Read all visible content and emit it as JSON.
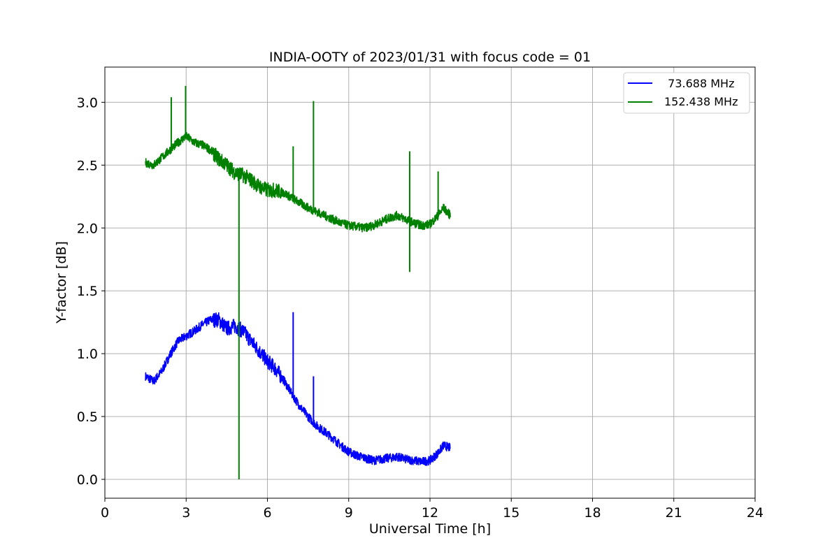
{
  "chart_data": {
    "type": "line",
    "title": "INDIA-OOTY of 2023/01/31 with focus code = 01",
    "xlabel": "Universal Time [h]",
    "ylabel": "Y-factor [dB]",
    "xlim": [
      0,
      24
    ],
    "ylim": [
      -0.15,
      3.28
    ],
    "xticks": [
      0,
      3,
      6,
      9,
      12,
      15,
      18,
      21,
      24
    ],
    "yticks": [
      0.0,
      0.5,
      1.0,
      1.5,
      2.0,
      2.5,
      3.0
    ],
    "xtick_labels": [
      "0",
      "3",
      "6",
      "9",
      "12",
      "15",
      "18",
      "21",
      "24"
    ],
    "ytick_labels": [
      "0.0",
      "0.5",
      "1.0",
      "1.5",
      "2.0",
      "2.5",
      "3.0"
    ],
    "grid": true,
    "legend_position": "top-right",
    "series": [
      {
        "name": "  73.688 MHz",
        "color": "#0000ff",
        "x": [
          1.5,
          1.8,
          2.1,
          2.4,
          2.7,
          3.0,
          3.3,
          3.6,
          3.9,
          4.2,
          4.5,
          4.8,
          5.1,
          5.4,
          5.7,
          6.0,
          6.3,
          6.6,
          6.9,
          7.2,
          7.5,
          7.8,
          8.1,
          8.4,
          8.7,
          9.0,
          9.3,
          9.6,
          9.9,
          10.2,
          10.5,
          10.8,
          11.1,
          11.4,
          11.7,
          12.0,
          12.3,
          12.5,
          12.75
        ],
        "y": [
          0.82,
          0.78,
          0.86,
          0.99,
          1.1,
          1.14,
          1.18,
          1.23,
          1.27,
          1.27,
          1.2,
          1.22,
          1.18,
          1.1,
          1.02,
          0.94,
          0.88,
          0.79,
          0.68,
          0.58,
          0.5,
          0.43,
          0.38,
          0.33,
          0.27,
          0.22,
          0.19,
          0.17,
          0.15,
          0.16,
          0.17,
          0.18,
          0.16,
          0.15,
          0.14,
          0.15,
          0.21,
          0.27,
          0.25
        ]
      },
      {
        "name": "152.438 MHz",
        "color": "#008000",
        "x": [
          1.5,
          1.8,
          2.1,
          2.4,
          2.7,
          3.0,
          3.3,
          3.6,
          3.9,
          4.2,
          4.5,
          4.8,
          4.95,
          5.1,
          5.4,
          5.7,
          6.0,
          6.3,
          6.6,
          6.9,
          7.2,
          7.5,
          7.8,
          8.1,
          8.4,
          8.7,
          9.0,
          9.3,
          9.6,
          9.9,
          10.2,
          10.5,
          10.8,
          11.1,
          11.4,
          11.7,
          12.0,
          12.3,
          12.5,
          12.75
        ],
        "y": [
          2.52,
          2.5,
          2.56,
          2.62,
          2.68,
          2.73,
          2.68,
          2.66,
          2.62,
          2.55,
          2.5,
          2.44,
          0.0,
          2.42,
          2.38,
          2.33,
          2.3,
          2.3,
          2.28,
          2.24,
          2.2,
          2.16,
          2.13,
          2.1,
          2.07,
          2.04,
          2.02,
          2.01,
          2.0,
          2.02,
          2.05,
          2.08,
          2.1,
          2.07,
          2.04,
          2.02,
          2.03,
          2.1,
          2.16,
          2.1
        ]
      }
    ],
    "spikes": [
      {
        "series": "152.438 MHz",
        "x": 2.45,
        "y": 3.04
      },
      {
        "series": "152.438 MHz",
        "x": 2.98,
        "y": 3.13
      },
      {
        "series": "152.438 MHz",
        "x": 6.95,
        "y": 2.65
      },
      {
        "series": "152.438 MHz",
        "x": 7.7,
        "y": 3.01
      },
      {
        "series": "152.438 MHz",
        "x": 11.25,
        "y": 2.61
      },
      {
        "series": "152.438 MHz",
        "x": 11.25,
        "y": 1.65
      },
      {
        "series": "152.438 MHz",
        "x": 12.3,
        "y": 2.45
      },
      {
        "series": "  73.688 MHz",
        "x": 6.95,
        "y": 1.33
      },
      {
        "series": "  73.688 MHz",
        "x": 7.7,
        "y": 0.82
      }
    ]
  }
}
